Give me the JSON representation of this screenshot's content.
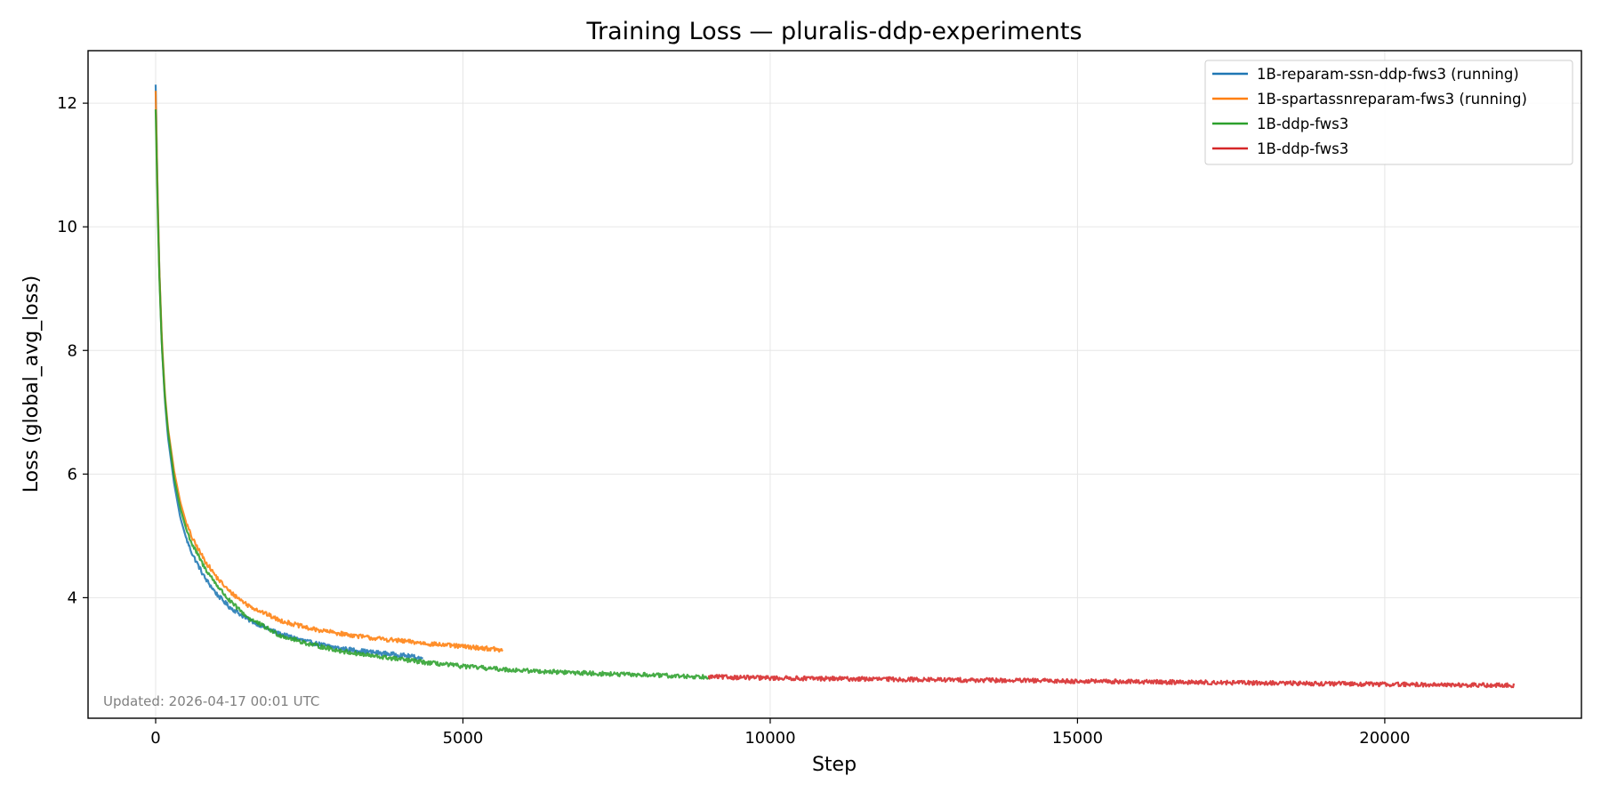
{
  "chart_data": {
    "type": "line",
    "title": "Training Loss — pluralis-ddp-experiments",
    "xlabel": "Step",
    "ylabel": "Loss (global_avg_loss)",
    "xlim": [
      -1100,
      23200
    ],
    "ylim": [
      2.05,
      12.85
    ],
    "xticks": [
      0,
      5000,
      10000,
      15000,
      20000
    ],
    "xtick_labels": [
      "0",
      "5000",
      "10000",
      "15000",
      "20000"
    ],
    "yticks": [
      4,
      6,
      8,
      10,
      12
    ],
    "ytick_labels": [
      "4",
      "6",
      "8",
      "10",
      "12"
    ],
    "grid": true,
    "legend_position": "top-right",
    "series": [
      {
        "name": "1B-reparam-ssn-ddp-fws3 (running)",
        "color": "#1f77b4",
        "x": [
          0,
          30,
          60,
          100,
          150,
          200,
          300,
          400,
          500,
          600,
          800,
          1000,
          1200,
          1500,
          2000,
          2500,
          3000,
          3500,
          4000,
          4350
        ],
        "y": [
          12.3,
          10.6,
          9.3,
          8.1,
          7.2,
          6.6,
          5.85,
          5.3,
          4.95,
          4.7,
          4.32,
          4.05,
          3.85,
          3.65,
          3.42,
          3.28,
          3.18,
          3.12,
          3.07,
          3.02
        ]
      },
      {
        "name": "1B-spartassnreparam-fws3 (running)",
        "color": "#ff7f0e",
        "x": [
          0,
          30,
          60,
          100,
          150,
          200,
          300,
          400,
          500,
          600,
          800,
          1000,
          1200,
          1500,
          2000,
          2500,
          3000,
          3500,
          4000,
          4500,
          5000,
          5500,
          5650
        ],
        "y": [
          12.2,
          10.6,
          9.3,
          8.2,
          7.3,
          6.75,
          6.05,
          5.55,
          5.2,
          4.95,
          4.6,
          4.32,
          4.1,
          3.88,
          3.64,
          3.5,
          3.42,
          3.35,
          3.3,
          3.25,
          3.21,
          3.17,
          3.14
        ]
      },
      {
        "name": "1B-ddp-fws3",
        "color": "#2ca02c",
        "x": [
          0,
          30,
          60,
          100,
          150,
          200,
          300,
          400,
          500,
          600,
          800,
          1000,
          1200,
          1500,
          2000,
          2500,
          3000,
          3500,
          4000,
          4500,
          5000,
          5500,
          6000,
          6500,
          7000,
          7500,
          8000,
          8500,
          9000
        ],
        "y": [
          11.9,
          10.4,
          9.2,
          8.1,
          7.25,
          6.7,
          5.95,
          5.45,
          5.1,
          4.85,
          4.48,
          4.2,
          3.95,
          3.68,
          3.4,
          3.25,
          3.14,
          3.06,
          3.0,
          2.94,
          2.89,
          2.85,
          2.82,
          2.8,
          2.78,
          2.76,
          2.75,
          2.73,
          2.72
        ]
      },
      {
        "name": "1B-ddp-fws3",
        "color": "#d62728",
        "x": [
          9000,
          10000,
          11000,
          12000,
          13000,
          14000,
          15000,
          16000,
          17000,
          18000,
          19000,
          20000,
          21000,
          22100
        ],
        "y": [
          2.72,
          2.7,
          2.69,
          2.68,
          2.67,
          2.66,
          2.65,
          2.64,
          2.63,
          2.62,
          2.61,
          2.6,
          2.59,
          2.58
        ]
      }
    ]
  },
  "footnote": "Updated: 2026-04-17 00:01 UTC"
}
